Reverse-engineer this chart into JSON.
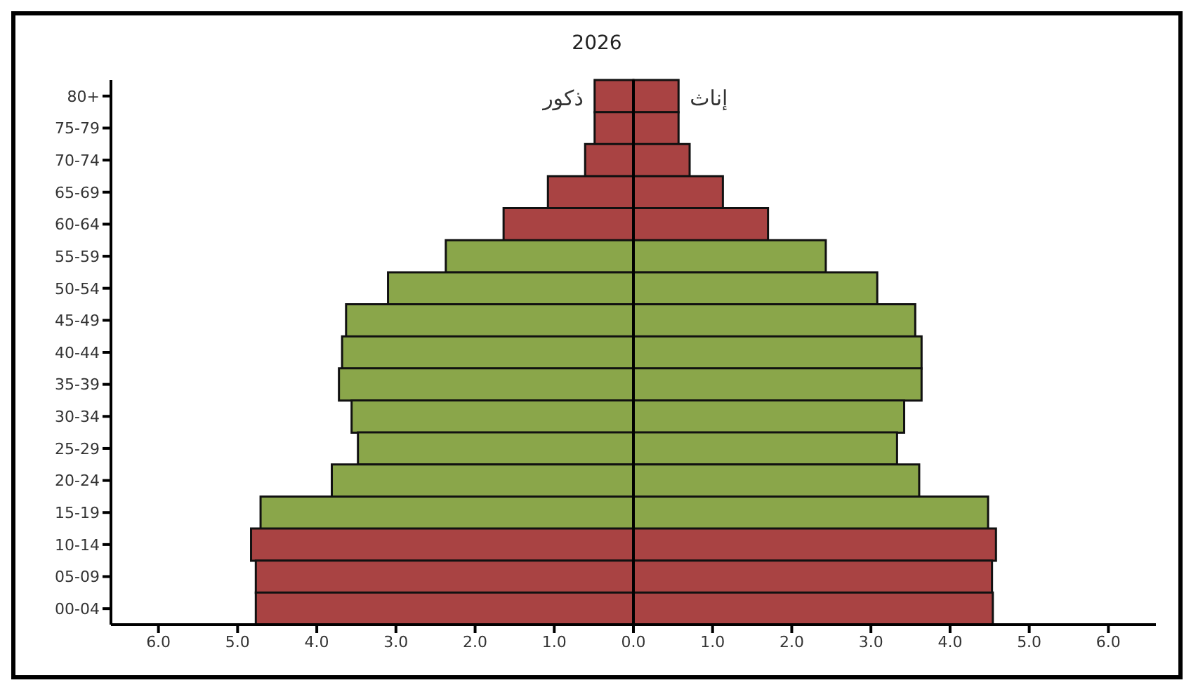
{
  "chart_data": {
    "type": "bar",
    "orientation": "horizontal",
    "stacked": true,
    "title": "2026",
    "categories": [
      "80+",
      "75-79",
      "70-74",
      "65-69",
      "60-64",
      "55-59",
      "50-54",
      "45-49",
      "40-44",
      "35-39",
      "30-34",
      "25-29",
      "20-24",
      "15-19",
      "10-14",
      "05-09",
      "00-04"
    ],
    "series": [
      {
        "name": "ذكور",
        "colors": [
          "#a94343",
          "#a94343",
          "#a94343",
          "#a94343",
          "#a94343",
          "#8aa64a",
          "#8aa64a",
          "#8aa64a",
          "#8aa64a",
          "#8aa64a",
          "#8aa64a",
          "#8aa64a",
          "#8aa64a",
          "#8aa64a",
          "#a94343",
          "#a94343",
          "#a94343"
        ],
        "values": [
          -0.49,
          -0.49,
          -0.61,
          -1.08,
          -1.64,
          -2.37,
          -3.1,
          -3.63,
          -3.68,
          -3.72,
          -3.56,
          -3.48,
          -3.81,
          -4.71,
          -4.83,
          -4.77,
          -4.77
        ]
      },
      {
        "name": "إناث",
        "colors": [
          "#a94343",
          "#a94343",
          "#a94343",
          "#a94343",
          "#a94343",
          "#8aa64a",
          "#8aa64a",
          "#8aa64a",
          "#8aa64a",
          "#8aa64a",
          "#8aa64a",
          "#8aa64a",
          "#8aa64a",
          "#8aa64a",
          "#a94343",
          "#a94343",
          "#a94343"
        ],
        "values": [
          0.57,
          0.57,
          0.71,
          1.13,
          1.7,
          2.43,
          3.08,
          3.56,
          3.64,
          3.64,
          3.42,
          3.33,
          3.61,
          4.48,
          4.58,
          4.53,
          4.54
        ]
      }
    ],
    "xlim": [
      -6.6,
      6.6
    ],
    "xticks": [
      {
        "value": -6,
        "label": "6.0"
      },
      {
        "value": -5,
        "label": "5.0"
      },
      {
        "value": -4,
        "label": "4.0"
      },
      {
        "value": -3,
        "label": "3.0"
      },
      {
        "value": -2,
        "label": "2.0"
      },
      {
        "value": -1,
        "label": "1.0"
      },
      {
        "value": 0,
        "label": "0.0"
      },
      {
        "value": 1,
        "label": "1.0"
      },
      {
        "value": 2,
        "label": "2.0"
      },
      {
        "value": 3,
        "label": "3.0"
      },
      {
        "value": 4,
        "label": "4.0"
      },
      {
        "value": 5,
        "label": "5.0"
      },
      {
        "value": 6,
        "label": "6.0"
      }
    ],
    "ref_lines": [
      {
        "axis": "x",
        "value": 0,
        "color": "#000000"
      }
    ],
    "legend": false
  }
}
